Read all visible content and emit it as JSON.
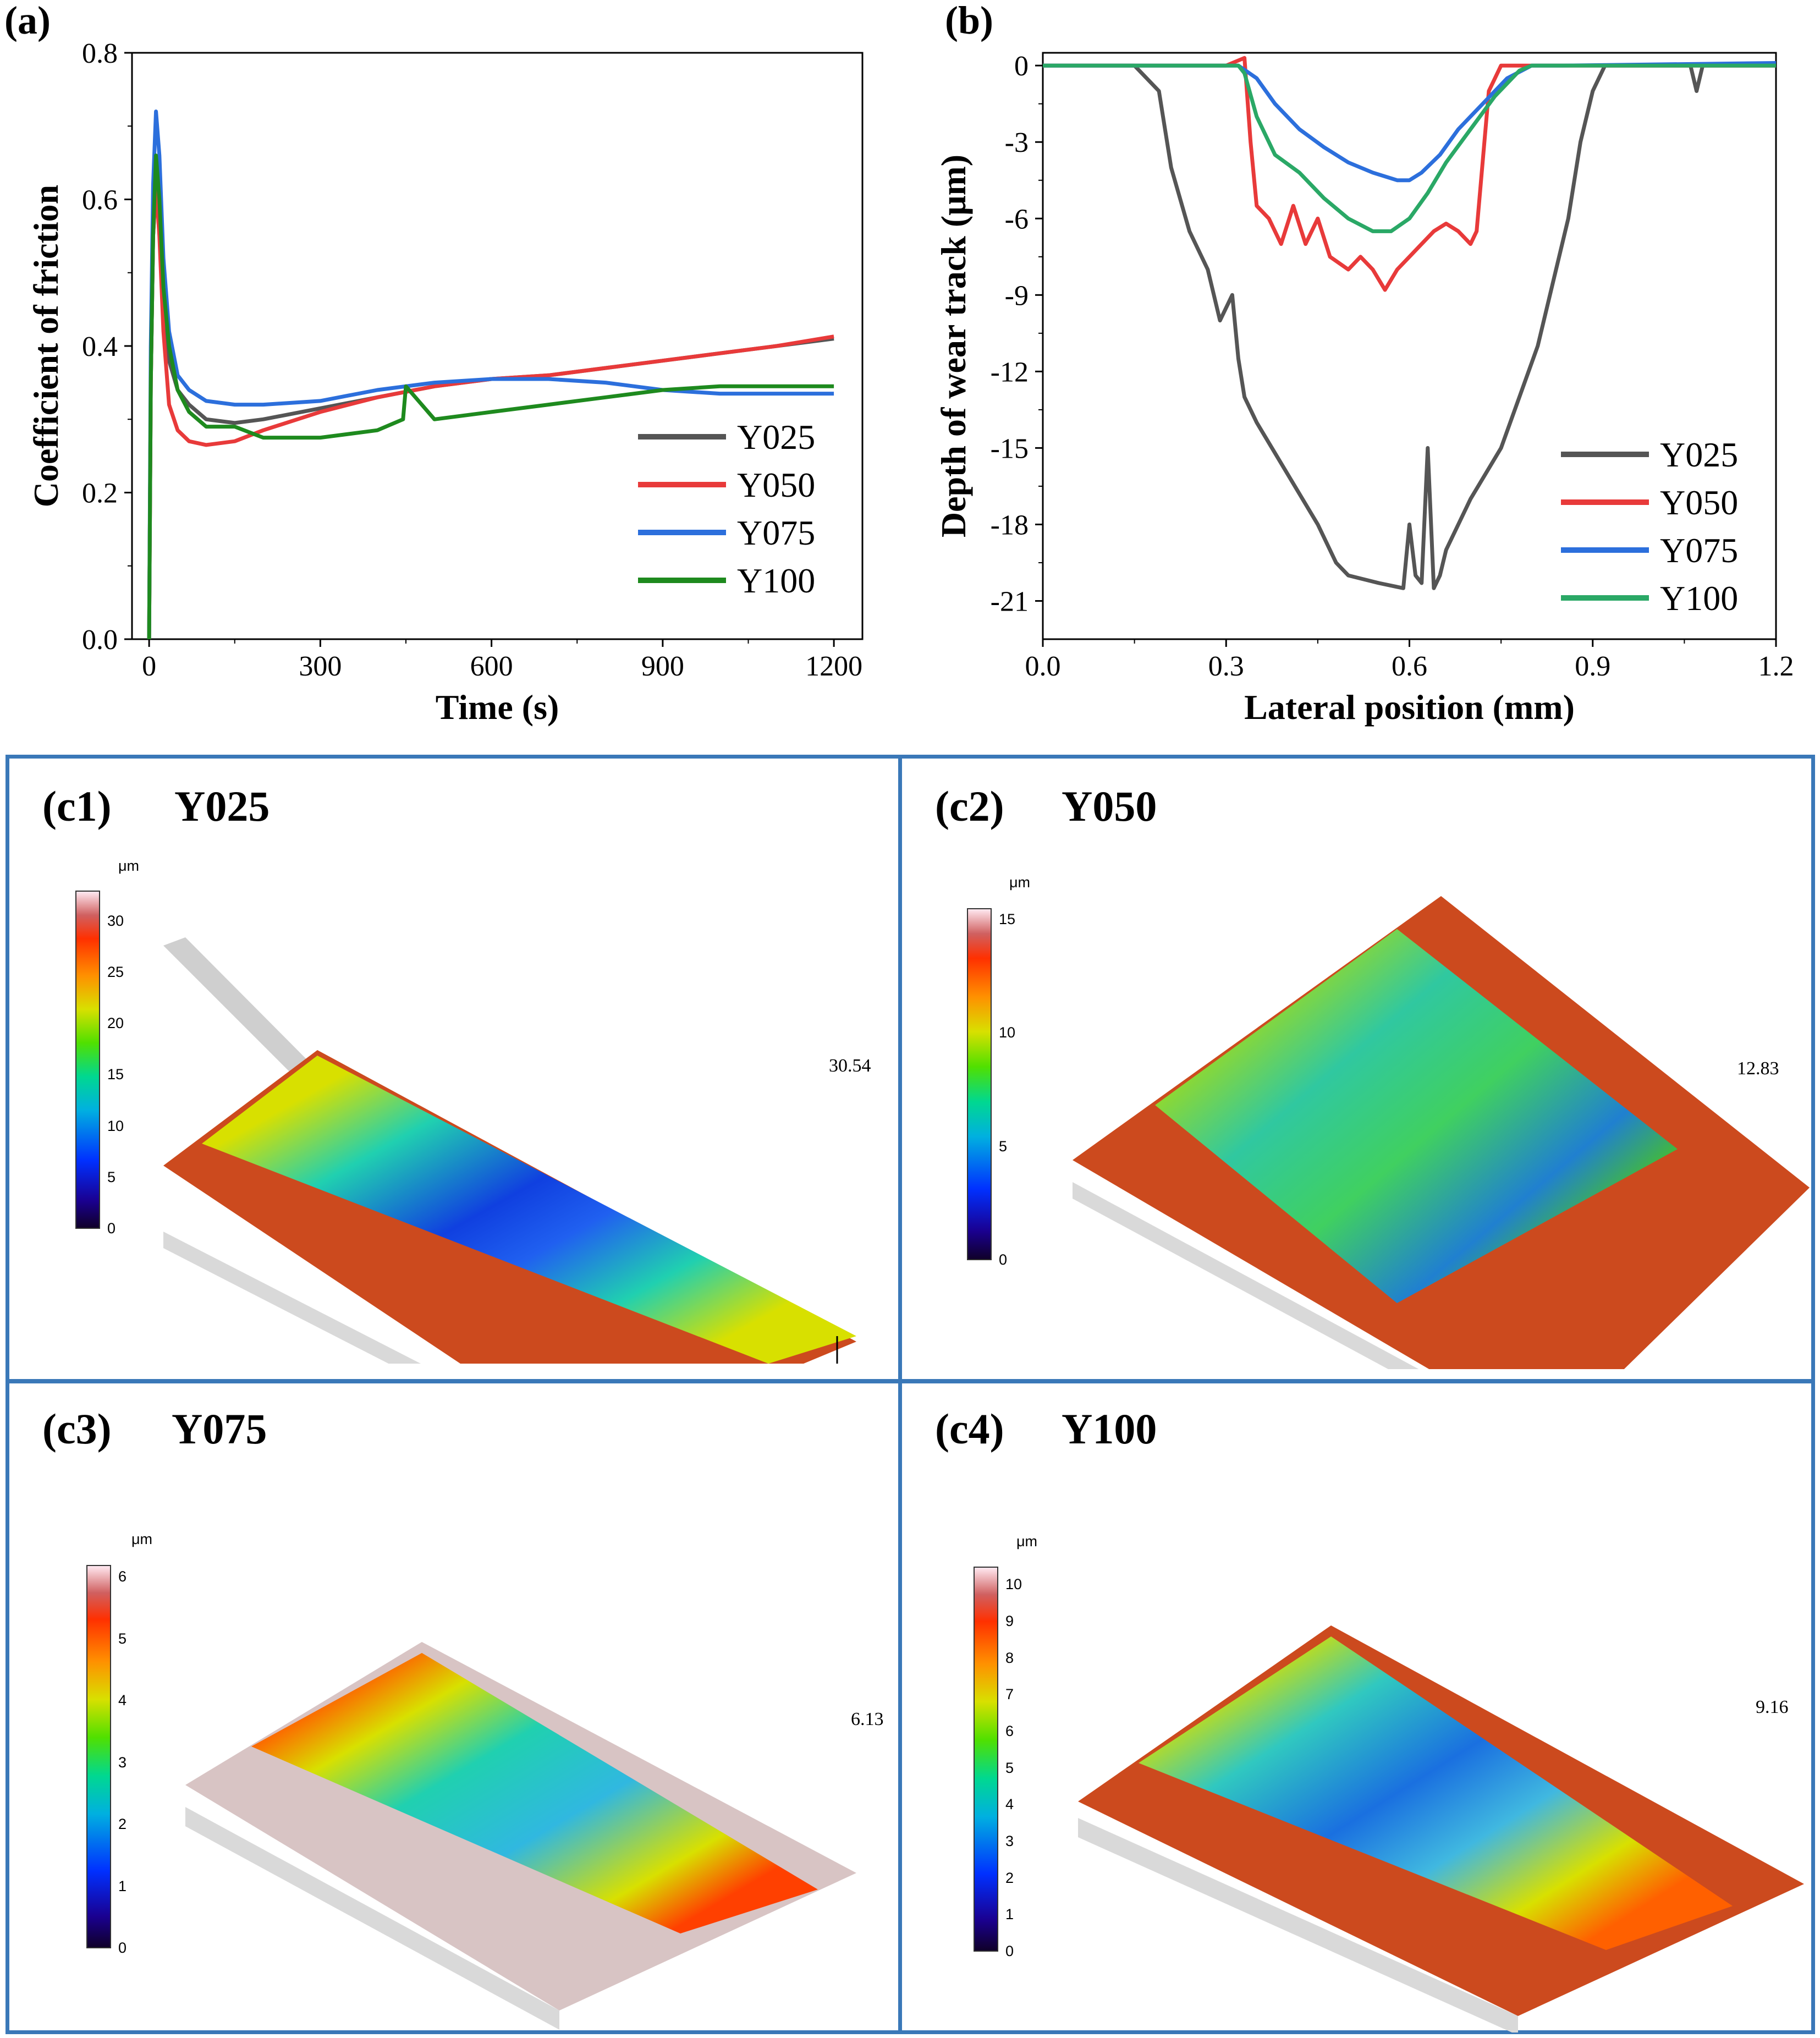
{
  "panel_a": {
    "letter": "(a)",
    "chart_data": {
      "type": "line",
      "title": "",
      "xlabel": "Time (s)",
      "ylabel": "Coefficient of friction",
      "xlim": [
        -30,
        1250
      ],
      "ylim": [
        0.0,
        0.8
      ],
      "xticks": [
        "0",
        "300",
        "600",
        "900",
        "1200"
      ],
      "xtick_values": [
        0,
        300,
        600,
        900,
        1200
      ],
      "yticks": [
        "0.0",
        "0.2",
        "0.4",
        "0.6",
        "0.8"
      ],
      "ytick_values": [
        0.0,
        0.2,
        0.4,
        0.6,
        0.8
      ],
      "legend_position": "bottom-right",
      "series": [
        {
          "name": "Y025",
          "color": "#555555",
          "x": [
            0,
            3,
            7,
            12,
            18,
            25,
            35,
            50,
            70,
            100,
            150,
            200,
            300,
            400,
            500,
            600,
            700,
            800,
            900,
            1000,
            1100,
            1200
          ],
          "y": [
            0.0,
            0.35,
            0.55,
            0.62,
            0.57,
            0.46,
            0.38,
            0.34,
            0.32,
            0.3,
            0.295,
            0.3,
            0.315,
            0.33,
            0.345,
            0.355,
            0.36,
            0.37,
            0.38,
            0.39,
            0.4,
            0.41
          ]
        },
        {
          "name": "Y050",
          "color": "#e83a3a",
          "x": [
            0,
            3,
            7,
            12,
            18,
            25,
            35,
            50,
            70,
            100,
            150,
            200,
            300,
            400,
            500,
            600,
            700,
            800,
            900,
            1000,
            1100,
            1200
          ],
          "y": [
            0.0,
            0.35,
            0.55,
            0.62,
            0.55,
            0.42,
            0.32,
            0.285,
            0.27,
            0.265,
            0.27,
            0.285,
            0.31,
            0.33,
            0.345,
            0.355,
            0.36,
            0.37,
            0.38,
            0.39,
            0.4,
            0.413
          ]
        },
        {
          "name": "Y075",
          "color": "#2c6fdc",
          "x": [
            0,
            3,
            7,
            12,
            18,
            25,
            35,
            50,
            70,
            100,
            150,
            200,
            300,
            400,
            500,
            600,
            700,
            800,
            900,
            1000,
            1100,
            1200
          ],
          "y": [
            0.0,
            0.4,
            0.62,
            0.72,
            0.66,
            0.52,
            0.42,
            0.36,
            0.34,
            0.325,
            0.32,
            0.32,
            0.325,
            0.34,
            0.35,
            0.355,
            0.355,
            0.35,
            0.34,
            0.335,
            0.335,
            0.335
          ]
        },
        {
          "name": "Y100",
          "color": "#1e8a1e",
          "x": [
            0,
            3,
            7,
            12,
            18,
            25,
            35,
            50,
            70,
            100,
            150,
            200,
            300,
            400,
            445,
            450,
            500,
            600,
            700,
            800,
            900,
            1000,
            1100,
            1200
          ],
          "y": [
            0.0,
            0.35,
            0.55,
            0.66,
            0.6,
            0.48,
            0.4,
            0.34,
            0.31,
            0.29,
            0.29,
            0.275,
            0.275,
            0.285,
            0.3,
            0.345,
            0.3,
            0.31,
            0.32,
            0.33,
            0.34,
            0.345,
            0.345,
            0.345
          ]
        }
      ]
    }
  },
  "panel_b": {
    "letter": "(b)",
    "chart_data": {
      "type": "line",
      "title": "",
      "xlabel": "Lateral position (mm)",
      "ylabel": "Depth of wear track (μm)",
      "xlim": [
        0.0,
        1.2
      ],
      "ylim": [
        -22.5,
        0.5
      ],
      "xticks": [
        "0.0",
        "0.3",
        "0.6",
        "0.9",
        "1.2"
      ],
      "xtick_values": [
        0.0,
        0.3,
        0.6,
        0.9,
        1.2
      ],
      "yticks": [
        "0",
        "-3",
        "-6",
        "-9",
        "-12",
        "-15",
        "-18",
        "-21"
      ],
      "ytick_values": [
        0,
        -3,
        -6,
        -9,
        -12,
        -15,
        -18,
        -21
      ],
      "legend_position": "bottom-right",
      "series": [
        {
          "name": "Y025",
          "color": "#555555",
          "x": [
            0.0,
            0.15,
            0.19,
            0.21,
            0.24,
            0.27,
            0.29,
            0.31,
            0.32,
            0.33,
            0.35,
            0.4,
            0.45,
            0.48,
            0.5,
            0.55,
            0.59,
            0.6,
            0.61,
            0.62,
            0.63,
            0.64,
            0.65,
            0.66,
            0.7,
            0.75,
            0.78,
            0.81,
            0.82,
            0.84,
            0.86,
            0.88,
            0.9,
            0.92,
            1.0,
            1.06,
            1.07,
            1.08,
            1.2
          ],
          "y": [
            0.0,
            0.0,
            -1.0,
            -4.0,
            -6.5,
            -8.0,
            -10.0,
            -9.0,
            -11.5,
            -13.0,
            -14.0,
            -16.0,
            -18.0,
            -19.5,
            -20.0,
            -20.3,
            -20.5,
            -18.0,
            -20.0,
            -20.3,
            -15.0,
            -20.5,
            -20.0,
            -19.0,
            -17.0,
            -15.0,
            -13.0,
            -11.0,
            -10.0,
            -8.0,
            -6.0,
            -3.0,
            -1.0,
            0.0,
            0.0,
            0.0,
            -1.0,
            0.0,
            0.0
          ]
        },
        {
          "name": "Y050",
          "color": "#e83a3a",
          "x": [
            0.0,
            0.3,
            0.33,
            0.34,
            0.35,
            0.37,
            0.39,
            0.41,
            0.43,
            0.45,
            0.47,
            0.5,
            0.52,
            0.54,
            0.56,
            0.58,
            0.6,
            0.62,
            0.64,
            0.66,
            0.68,
            0.7,
            0.71,
            0.73,
            0.75,
            0.8,
            1.2
          ],
          "y": [
            0.0,
            0.0,
            0.3,
            -3.0,
            -5.5,
            -6.0,
            -7.0,
            -5.5,
            -7.0,
            -6.0,
            -7.5,
            -8.0,
            -7.5,
            -8.0,
            -8.8,
            -8.0,
            -7.5,
            -7.0,
            -6.5,
            -6.2,
            -6.5,
            -7.0,
            -6.5,
            -1.0,
            0.0,
            0.0,
            0.0
          ]
        },
        {
          "name": "Y075",
          "color": "#2c6fdc",
          "x": [
            0.0,
            0.32,
            0.35,
            0.38,
            0.42,
            0.46,
            0.5,
            0.54,
            0.58,
            0.6,
            0.62,
            0.65,
            0.68,
            0.72,
            0.76,
            0.8,
            0.85,
            1.2
          ],
          "y": [
            0.0,
            0.0,
            -0.5,
            -1.5,
            -2.5,
            -3.2,
            -3.8,
            -4.2,
            -4.5,
            -4.5,
            -4.2,
            -3.5,
            -2.5,
            -1.5,
            -0.5,
            0.0,
            0.0,
            0.1
          ]
        },
        {
          "name": "Y100",
          "color": "#2aa866",
          "x": [
            0.0,
            0.32,
            0.33,
            0.35,
            0.38,
            0.42,
            0.46,
            0.5,
            0.54,
            0.57,
            0.6,
            0.63,
            0.66,
            0.7,
            0.74,
            0.78,
            0.8,
            1.2
          ],
          "y": [
            0.0,
            0.0,
            -0.3,
            -2.0,
            -3.5,
            -4.2,
            -5.2,
            -6.0,
            -6.5,
            -6.5,
            -6.0,
            -5.0,
            -3.8,
            -2.5,
            -1.2,
            -0.2,
            0.0,
            0.0
          ]
        }
      ]
    }
  },
  "panels_c": [
    {
      "label": "(c1)",
      "sample": "Y025",
      "unit": "μm",
      "height_label": "30.54",
      "cbar_ticks": [
        "30",
        "25",
        "20",
        "15",
        "10",
        "5",
        "0"
      ],
      "cbar_max": 33
    },
    {
      "label": "(c2)",
      "sample": "Y050",
      "unit": "μm",
      "height_label": "12.83",
      "cbar_ticks": [
        "15",
        "10",
        "5",
        "0"
      ],
      "cbar_max": 15.5
    },
    {
      "label": "(c3)",
      "sample": "Y075",
      "unit": "μm",
      "height_label": "6.13",
      "cbar_ticks": [
        "6",
        "5",
        "4",
        "3",
        "2",
        "1",
        "0"
      ],
      "cbar_max": 6.2
    },
    {
      "label": "(c4)",
      "sample": "Y100",
      "unit": "μm",
      "height_label": "9.16",
      "cbar_ticks": [
        "10",
        "9",
        "8",
        "7",
        "6",
        "5",
        "4",
        "3",
        "2",
        "1",
        "0"
      ],
      "cbar_max": 10.5
    }
  ],
  "colors": {
    "panel_border": "#3a78b8",
    "surface_orange": "#cc4a1e",
    "surface_pink": "#d8c4c4",
    "side_gray": "#d8d8d8"
  }
}
